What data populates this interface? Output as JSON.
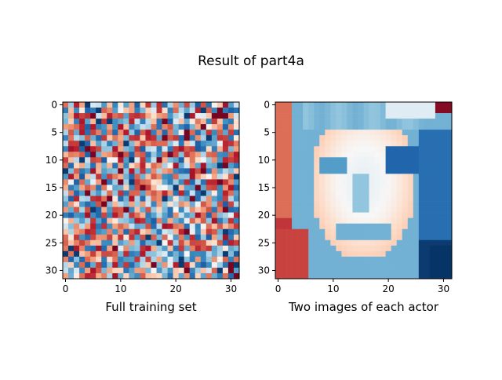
{
  "figure": {
    "suptitle": "Result of part4a"
  },
  "chart_data": [
    {
      "type": "heatmap",
      "title": "",
      "xlabel": "Full training set",
      "ylabel": "",
      "colormap": "RdBu",
      "shape": [
        32,
        32
      ],
      "xlim": [
        -0.5,
        31.5
      ],
      "ylim": [
        31.5,
        -0.5
      ],
      "x_ticks": [
        0,
        10,
        20,
        30
      ],
      "y_ticks": [
        0,
        5,
        10,
        15,
        20,
        25,
        30
      ],
      "description_of_values": "noisy weight map; cell values in [-1,1] estimated from colour",
      "pattern": "noise",
      "seed": 7
    },
    {
      "type": "heatmap",
      "title": "",
      "xlabel": "Two images of each actor",
      "ylabel": "",
      "colormap": "RdBu",
      "shape": [
        32,
        32
      ],
      "xlim": [
        -0.5,
        31.5
      ],
      "ylim": [
        31.5,
        -0.5
      ],
      "x_ticks": [
        0,
        10,
        20,
        30
      ],
      "y_ticks": [
        0,
        5,
        10,
        15,
        20,
        25,
        30
      ],
      "pattern": "face"
    }
  ],
  "colors": {
    "red_dark": "#67001f",
    "red": "#d6604d",
    "white": "#f7f7f7",
    "blue": "#4393c3",
    "blue_dark": "#053061"
  }
}
